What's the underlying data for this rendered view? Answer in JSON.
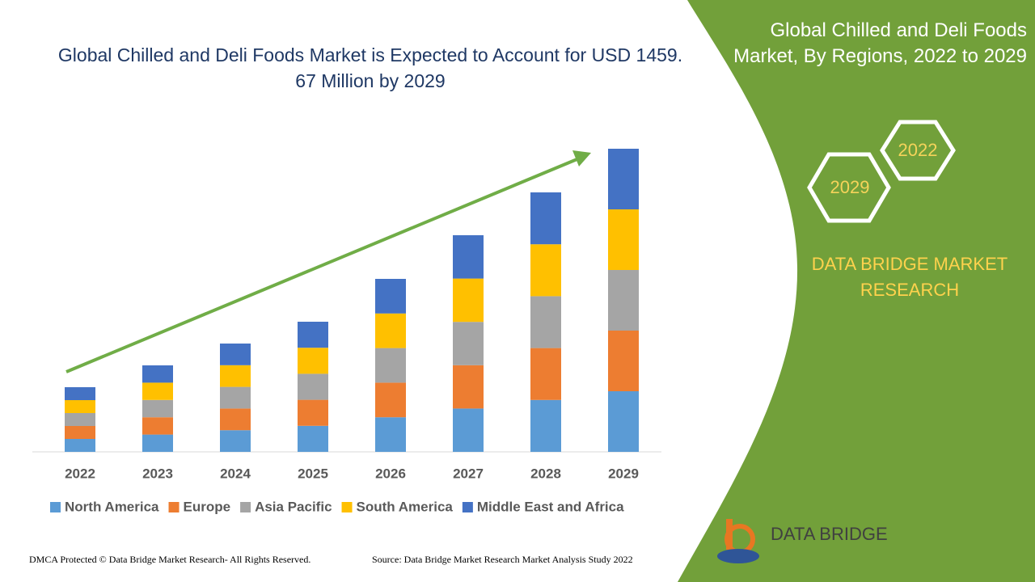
{
  "chart_data": {
    "type": "stacked_bar",
    "title": "Global Chilled and Deli Foods Market is Expected to Account for USD 1459. 67 Million by 2029",
    "categories": [
      "2022",
      "2023",
      "2024",
      "2025",
      "2026",
      "2027",
      "2028",
      "2029"
    ],
    "series": [
      {
        "name": "North America",
        "color": "#5b9bd5",
        "values": [
          16,
          21.4,
          26.8,
          32.2,
          42.8,
          53.6,
          64.2,
          75
        ]
      },
      {
        "name": "Europe",
        "color": "#ed7d31",
        "values": [
          16,
          21.4,
          26.8,
          32.2,
          42.8,
          53.6,
          64.2,
          75
        ]
      },
      {
        "name": "Asia Pacific",
        "color": "#a5a5a5",
        "values": [
          16,
          21.4,
          26.8,
          32.2,
          42.8,
          53.6,
          64.2,
          75
        ]
      },
      {
        "name": "South America",
        "color": "#ffc000",
        "values": [
          16,
          21.4,
          26.8,
          32.2,
          42.8,
          53.6,
          64.2,
          75
        ]
      },
      {
        "name": "Middle East and Africa",
        "color": "#4472c4",
        "values": [
          16,
          21.4,
          26.8,
          32.2,
          42.8,
          53.6,
          64.2,
          75
        ]
      }
    ],
    "ylim": [
      0,
      400
    ],
    "legend": "bottom"
  },
  "side_panel": {
    "title": "Global Chilled and Deli Foods Market, By Regions, 2022 to 2029",
    "hex_years": [
      "2022",
      "2029"
    ],
    "brand": "DATA BRIDGE MARKET RESEARCH"
  },
  "footer": {
    "copyright": "DMCA Protected © Data Bridge Market Research- All Rights Reserved.",
    "source": "Source: Data Bridge Market Research Market Analysis Study 2022",
    "logo_text": "DATA BRIDGE"
  }
}
